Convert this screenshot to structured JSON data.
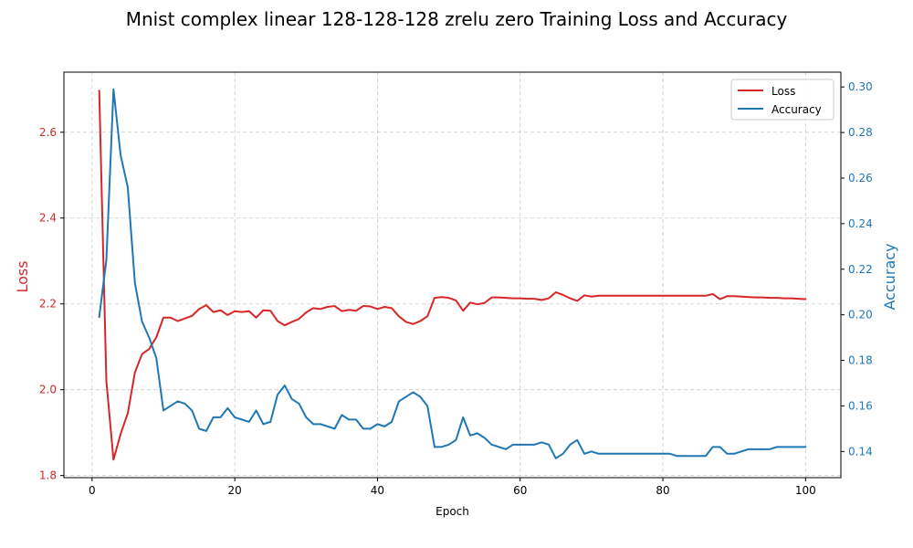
{
  "chart_data": {
    "type": "line",
    "title": "Mnist complex linear 128-128-128 zrelu zero Training Loss and Accuracy",
    "xlabel": "Epoch",
    "ylabel_left": "Loss",
    "ylabel_right": "Accuracy",
    "xlim": [
      -3.95,
      104.95
    ],
    "ylim_left": [
      1.795,
      2.74
    ],
    "ylim_right": [
      0.1285,
      0.3065
    ],
    "xticks": [
      0,
      20,
      40,
      60,
      80,
      100
    ],
    "yticks_left": [
      1.8,
      2.0,
      2.2,
      2.4,
      2.6
    ],
    "yticks_left_labels": [
      "1.8",
      "2.0",
      "2.2",
      "2.4",
      "2.6"
    ],
    "yticks_right": [
      0.14,
      0.16,
      0.18,
      0.2,
      0.22,
      0.24,
      0.26,
      0.28,
      0.3
    ],
    "yticks_right_labels": [
      "0.14",
      "0.16",
      "0.18",
      "0.20",
      "0.22",
      "0.24",
      "0.26",
      "0.28",
      "0.30"
    ],
    "grid": true,
    "legend_position": "top-right",
    "x": [
      1,
      2,
      3,
      4,
      5,
      6,
      7,
      8,
      9,
      10,
      11,
      12,
      13,
      14,
      15,
      16,
      17,
      18,
      19,
      20,
      21,
      22,
      23,
      24,
      25,
      26,
      27,
      28,
      29,
      30,
      31,
      32,
      33,
      34,
      35,
      36,
      37,
      38,
      39,
      40,
      41,
      42,
      43,
      44,
      45,
      46,
      47,
      48,
      49,
      50,
      51,
      52,
      53,
      54,
      55,
      56,
      57,
      58,
      59,
      60,
      61,
      62,
      63,
      64,
      65,
      66,
      67,
      68,
      69,
      70,
      71,
      72,
      73,
      74,
      75,
      76,
      77,
      78,
      79,
      80,
      81,
      82,
      83,
      84,
      85,
      86,
      87,
      88,
      89,
      90,
      91,
      92,
      93,
      94,
      95,
      96,
      97,
      98,
      99,
      100
    ],
    "series": [
      {
        "name": "Loss",
        "axis": "left",
        "color": "#d62728",
        "values": [
          2.697,
          2.02,
          1.837,
          1.897,
          1.945,
          2.04,
          2.083,
          2.095,
          2.122,
          2.168,
          2.168,
          2.16,
          2.166,
          2.172,
          2.188,
          2.197,
          2.181,
          2.185,
          2.174,
          2.183,
          2.181,
          2.183,
          2.168,
          2.185,
          2.184,
          2.16,
          2.15,
          2.158,
          2.165,
          2.18,
          2.19,
          2.188,
          2.193,
          2.195,
          2.183,
          2.186,
          2.184,
          2.195,
          2.194,
          2.188,
          2.193,
          2.19,
          2.171,
          2.158,
          2.153,
          2.16,
          2.171,
          2.214,
          2.216,
          2.214,
          2.208,
          2.184,
          2.203,
          2.199,
          2.202,
          2.215,
          2.215,
          2.214,
          2.213,
          2.213,
          2.212,
          2.212,
          2.209,
          2.213,
          2.227,
          2.221,
          2.213,
          2.207,
          2.22,
          2.217,
          2.219,
          2.219,
          2.219,
          2.219,
          2.219,
          2.219,
          2.219,
          2.219,
          2.219,
          2.219,
          2.219,
          2.219,
          2.219,
          2.219,
          2.219,
          2.219,
          2.223,
          2.211,
          2.218,
          2.218,
          2.217,
          2.216,
          2.215,
          2.215,
          2.214,
          2.214,
          2.213,
          2.213,
          2.212,
          2.211
        ]
      },
      {
        "name": "Accuracy",
        "axis": "right",
        "color": "#1f77b4",
        "values": [
          0.199,
          0.224,
          0.299,
          0.27,
          0.256,
          0.214,
          0.197,
          0.19,
          0.181,
          0.158,
          0.16,
          0.162,
          0.161,
          0.158,
          0.15,
          0.149,
          0.155,
          0.155,
          0.159,
          0.155,
          0.154,
          0.153,
          0.158,
          0.152,
          0.153,
          0.165,
          0.169,
          0.163,
          0.161,
          0.155,
          0.152,
          0.152,
          0.151,
          0.15,
          0.156,
          0.154,
          0.154,
          0.15,
          0.15,
          0.152,
          0.151,
          0.153,
          0.162,
          0.164,
          0.166,
          0.164,
          0.16,
          0.142,
          0.142,
          0.143,
          0.145,
          0.155,
          0.147,
          0.148,
          0.146,
          0.143,
          0.142,
          0.141,
          0.143,
          0.143,
          0.143,
          0.143,
          0.144,
          0.143,
          0.137,
          0.139,
          0.143,
          0.145,
          0.139,
          0.14,
          0.139,
          0.139,
          0.139,
          0.139,
          0.139,
          0.139,
          0.139,
          0.139,
          0.139,
          0.139,
          0.139,
          0.138,
          0.138,
          0.138,
          0.138,
          0.138,
          0.142,
          0.142,
          0.139,
          0.139,
          0.14,
          0.141,
          0.141,
          0.141,
          0.141,
          0.142,
          0.142,
          0.142,
          0.142,
          0.142
        ]
      }
    ]
  }
}
